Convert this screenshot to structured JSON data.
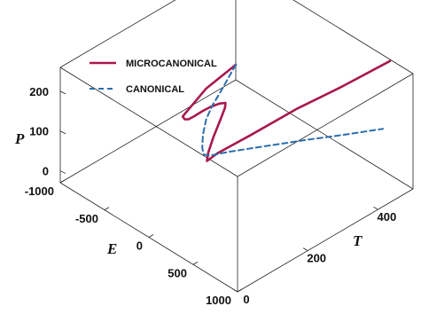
{
  "chart_data": {
    "type": "line",
    "dimensions": "3d",
    "axes": {
      "x": {
        "label": "T",
        "ticks": [
          0,
          200,
          400
        ],
        "range": [
          0,
          500
        ]
      },
      "y": {
        "label": "E",
        "ticks": [
          -1000,
          -500,
          0,
          500,
          1000
        ],
        "range": [
          -1000,
          1000
        ]
      },
      "z": {
        "label": "P",
        "ticks": [
          0,
          100,
          200
        ],
        "range": [
          -30,
          260
        ]
      }
    },
    "box": true,
    "grid": false,
    "legend_position": "top-left",
    "series": [
      {
        "name": "MICROCANONICAL",
        "color": "#a8184e",
        "dash": "solid",
        "points": [
          {
            "T": 500,
            "E": -1000,
            "P": 8
          },
          {
            "T": 370,
            "E": -820,
            "P": 40
          },
          {
            "T": 260,
            "E": -580,
            "P": 78
          },
          {
            "T": 215,
            "E": -470,
            "P": 98
          },
          {
            "T": 198,
            "E": -380,
            "P": 112
          },
          {
            "T": 192,
            "E": -310,
            "P": 125
          },
          {
            "T": 195,
            "E": -260,
            "P": 138
          },
          {
            "T": 210,
            "E": -225,
            "P": 148
          },
          {
            "T": 228,
            "E": -205,
            "P": 152
          },
          {
            "T": 250,
            "E": -195,
            "P": 150
          },
          {
            "T": 270,
            "E": -205,
            "P": 140
          },
          {
            "T": 275,
            "E": -230,
            "P": 122
          },
          {
            "T": 268,
            "E": -250,
            "P": 95
          },
          {
            "T": 248,
            "E": -255,
            "P": 58
          },
          {
            "T": 232,
            "E": -250,
            "P": 28
          },
          {
            "T": 226,
            "E": -240,
            "P": 12
          },
          {
            "T": 240,
            "E": -180,
            "P": 32
          },
          {
            "T": 290,
            "E": 0,
            "P": 77
          },
          {
            "T": 360,
            "E": 250,
            "P": 142
          },
          {
            "T": 425,
            "E": 500,
            "P": 198
          },
          {
            "T": 500,
            "E": 740,
            "P": 256
          }
        ]
      },
      {
        "name": "CANONICAL",
        "color": "#2a6ead",
        "dash": "dashed",
        "points": [
          {
            "T": 500,
            "E": -1000,
            "P": 8
          },
          {
            "T": 445,
            "E": -880,
            "P": 14
          },
          {
            "T": 400,
            "E": -780,
            "P": 20
          },
          {
            "T": 355,
            "E": -690,
            "P": 23
          },
          {
            "T": 315,
            "E": -600,
            "P": 22
          },
          {
            "T": 280,
            "E": -500,
            "P": 14
          },
          {
            "T": 258,
            "E": -420,
            "P": 4
          },
          {
            "T": 250,
            "E": -370,
            "P": -2
          },
          {
            "T": 254,
            "E": -320,
            "P": 0
          },
          {
            "T": 282,
            "E": -200,
            "P": 12
          },
          {
            "T": 325,
            "E": 0,
            "P": 30
          },
          {
            "T": 380,
            "E": 250,
            "P": 52
          },
          {
            "T": 430,
            "E": 500,
            "P": 74
          },
          {
            "T": 480,
            "E": 740,
            "P": 96
          }
        ]
      }
    ]
  }
}
